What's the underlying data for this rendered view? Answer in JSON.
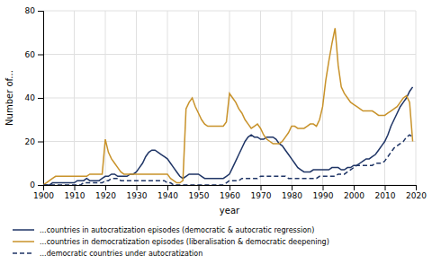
{
  "chart_data": {
    "type": "line",
    "xlabel": "year",
    "ylabel": "Number of...",
    "xlim": [
      1900,
      2020
    ],
    "xticks": [
      1900,
      1910,
      1920,
      1930,
      1940,
      1950,
      1960,
      1970,
      1980,
      1990,
      2000,
      2010,
      2020
    ],
    "ylim": [
      0,
      80
    ],
    "yticks": [
      0,
      20,
      40,
      60,
      80
    ],
    "grid": true,
    "legend": "bottom",
    "x": [
      1900,
      1901,
      1902,
      1903,
      1904,
      1905,
      1906,
      1907,
      1908,
      1909,
      1910,
      1911,
      1912,
      1913,
      1914,
      1915,
      1916,
      1917,
      1918,
      1919,
      1920,
      1921,
      1922,
      1923,
      1924,
      1925,
      1926,
      1927,
      1928,
      1929,
      1930,
      1931,
      1932,
      1933,
      1934,
      1935,
      1936,
      1937,
      1938,
      1939,
      1940,
      1941,
      1942,
      1943,
      1944,
      1945,
      1946,
      1947,
      1948,
      1949,
      1950,
      1951,
      1952,
      1953,
      1954,
      1955,
      1956,
      1957,
      1958,
      1959,
      1960,
      1961,
      1962,
      1963,
      1964,
      1965,
      1966,
      1967,
      1968,
      1969,
      1970,
      1971,
      1972,
      1973,
      1974,
      1975,
      1976,
      1977,
      1978,
      1979,
      1980,
      1981,
      1982,
      1983,
      1984,
      1985,
      1986,
      1987,
      1988,
      1989,
      1990,
      1991,
      1992,
      1993,
      1994,
      1995,
      1996,
      1997,
      1998,
      1999,
      2000,
      2001,
      2002,
      2003,
      2004,
      2005,
      2006,
      2007,
      2008,
      2009,
      2010,
      2011,
      2012,
      2013,
      2014,
      2015,
      2016,
      2017,
      2018,
      2019
    ],
    "series": [
      {
        "name": "...countries in autocratization episodes (democratic & autocratic regression)",
        "color": "#1f3566",
        "line_style": "solid",
        "values": [
          0,
          0,
          0,
          1,
          1,
          1,
          1,
          1,
          1,
          1,
          1,
          2,
          2,
          2,
          3,
          2,
          2,
          2,
          2,
          3,
          4,
          4,
          5,
          5,
          4,
          4,
          4,
          4,
          5,
          5,
          6,
          8,
          10,
          13,
          15,
          16,
          16,
          15,
          14,
          13,
          12,
          10,
          8,
          6,
          4,
          3,
          4,
          5,
          5,
          5,
          5,
          4,
          3,
          3,
          3,
          3,
          3,
          3,
          3,
          4,
          5,
          8,
          11,
          14,
          17,
          20,
          22,
          23,
          22,
          22,
          21,
          21,
          22,
          22,
          22,
          21,
          19,
          18,
          16,
          14,
          12,
          10,
          8,
          7,
          6,
          6,
          6,
          7,
          7,
          7,
          7,
          7,
          7,
          8,
          8,
          8,
          7,
          7,
          8,
          8,
          9,
          9,
          10,
          11,
          12,
          12,
          13,
          14,
          16,
          18,
          20,
          23,
          27,
          30,
          33,
          36,
          38,
          40,
          43,
          45
        ]
      },
      {
        "name": "...countries in democratization episodes (liberalisation & democratic deepening)",
        "color": "#c8922a",
        "line_style": "solid",
        "values": [
          0,
          1,
          2,
          3,
          4,
          4,
          4,
          4,
          4,
          4,
          4,
          4,
          4,
          4,
          4,
          5,
          5,
          5,
          5,
          5,
          21,
          15,
          12,
          10,
          8,
          6,
          5,
          5,
          5,
          5,
          5,
          5,
          5,
          5,
          5,
          5,
          5,
          5,
          5,
          5,
          5,
          3,
          2,
          1,
          1,
          2,
          35,
          38,
          40,
          36,
          33,
          30,
          28,
          27,
          27,
          27,
          27,
          27,
          27,
          29,
          42,
          40,
          38,
          35,
          33,
          30,
          28,
          26,
          27,
          28,
          26,
          23,
          21,
          20,
          19,
          19,
          19,
          20,
          22,
          24,
          27,
          27,
          26,
          26,
          26,
          27,
          28,
          28,
          27,
          30,
          36,
          48,
          57,
          65,
          72,
          55,
          45,
          42,
          40,
          38,
          37,
          36,
          35,
          34,
          34,
          34,
          34,
          33,
          32,
          32,
          32,
          33,
          34,
          35,
          36,
          38,
          40,
          41,
          38,
          20
        ]
      },
      {
        "name": "...democratic countries under autocratization",
        "color": "#1f3566",
        "line_style": "dashed",
        "values": [
          0,
          0,
          0,
          0,
          0,
          0,
          0,
          0,
          0,
          0,
          0,
          0,
          0,
          1,
          1,
          1,
          1,
          1,
          1,
          1,
          2,
          2,
          3,
          3,
          3,
          2,
          2,
          2,
          2,
          2,
          2,
          2,
          2,
          2,
          2,
          2,
          2,
          2,
          2,
          2,
          1,
          1,
          0,
          0,
          0,
          0,
          0,
          0,
          0,
          0,
          0,
          0,
          0,
          0,
          0,
          0,
          0,
          0,
          0,
          1,
          2,
          2,
          2,
          2,
          3,
          3,
          3,
          3,
          3,
          3,
          4,
          4,
          4,
          4,
          4,
          4,
          4,
          4,
          4,
          3,
          3,
          3,
          3,
          3,
          3,
          3,
          3,
          3,
          3,
          4,
          4,
          4,
          4,
          4,
          4,
          5,
          5,
          5,
          6,
          7,
          8,
          9,
          9,
          9,
          9,
          9,
          9,
          10,
          10,
          10,
          11,
          13,
          15,
          17,
          18,
          19,
          20,
          22,
          23,
          22
        ]
      }
    ]
  }
}
